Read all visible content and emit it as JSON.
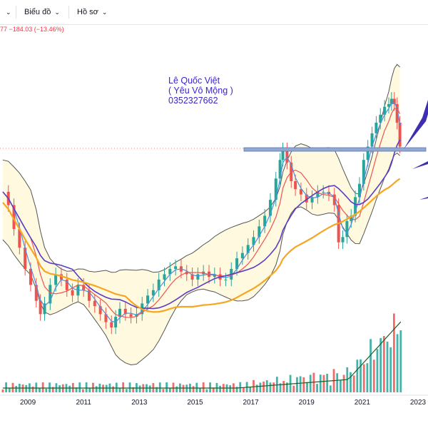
{
  "toolbar": {
    "chart_type_label": "Biểu đồ",
    "profile_label": "Hồ sơ"
  },
  "header": {
    "change_text": "77  −184.03 (−13.46%)"
  },
  "annotation": {
    "line1": "Lê Quốc Việt",
    "line2": "( Yêu Vô Mộng )",
    "line3": "0352327662"
  },
  "colors": {
    "up": "#26a69a",
    "down": "#ef5350",
    "ma_blue": "#4a90e2",
    "ma_red": "#ef5350",
    "ma_purple": "#5b3cc4",
    "ma_orange": "#f5a623",
    "bands": "#555555",
    "band_fill": "#fff9e0",
    "support_zone": "#8fa9d6",
    "arrow": "#3d2fb0"
  },
  "chart_data": {
    "type": "candlestick",
    "x_tick_labels": [
      "2009",
      "2011",
      "2013",
      "2015",
      "2017",
      "2019",
      "2021",
      "2023"
    ],
    "x_ticks": [
      2009,
      2011,
      2013,
      2015,
      2017,
      2019,
      2021,
      2023
    ],
    "xlim": [
      2008,
      2023
    ],
    "approx_close": [
      [
        2008.1,
        1070
      ],
      [
        2008.3,
        1020
      ],
      [
        2008.5,
        930
      ],
      [
        2008.7,
        860
      ],
      [
        2008.9,
        780
      ],
      [
        2009.1,
        720
      ],
      [
        2009.3,
        660
      ],
      [
        2009.45,
        610
      ],
      [
        2009.6,
        650
      ],
      [
        2009.8,
        720
      ],
      [
        2010.0,
        760
      ],
      [
        2010.2,
        740
      ],
      [
        2010.4,
        700
      ],
      [
        2010.6,
        680
      ],
      [
        2010.8,
        720
      ],
      [
        2011.0,
        700
      ],
      [
        2011.2,
        660
      ],
      [
        2011.4,
        640
      ],
      [
        2011.6,
        610
      ],
      [
        2011.8,
        580
      ],
      [
        2012.0,
        560
      ],
      [
        2012.15,
        600
      ],
      [
        2012.3,
        630
      ],
      [
        2012.5,
        610
      ],
      [
        2012.7,
        600
      ],
      [
        2012.9,
        610
      ],
      [
        2013.1,
        650
      ],
      [
        2013.3,
        680
      ],
      [
        2013.5,
        700
      ],
      [
        2013.7,
        740
      ],
      [
        2013.9,
        760
      ],
      [
        2014.1,
        780
      ],
      [
        2014.3,
        790
      ],
      [
        2014.5,
        770
      ],
      [
        2014.7,
        760
      ],
      [
        2014.9,
        740
      ],
      [
        2015.1,
        760
      ],
      [
        2015.3,
        770
      ],
      [
        2015.5,
        750
      ],
      [
        2015.7,
        760
      ],
      [
        2015.9,
        740
      ],
      [
        2016.1,
        740
      ],
      [
        2016.3,
        780
      ],
      [
        2016.5,
        820
      ],
      [
        2016.7,
        840
      ],
      [
        2016.9,
        870
      ],
      [
        2017.1,
        900
      ],
      [
        2017.3,
        940
      ],
      [
        2017.5,
        980
      ],
      [
        2017.7,
        1040
      ],
      [
        2017.9,
        1120
      ],
      [
        2018.05,
        1190
      ],
      [
        2018.15,
        1230
      ],
      [
        2018.3,
        1180
      ],
      [
        2018.45,
        1110
      ],
      [
        2018.6,
        1080
      ],
      [
        2018.8,
        1060
      ],
      [
        2019.0,
        1030
      ],
      [
        2019.2,
        1050
      ],
      [
        2019.4,
        1070
      ],
      [
        2019.6,
        1070
      ],
      [
        2019.8,
        1060
      ],
      [
        2020.0,
        1020
      ],
      [
        2020.15,
        880
      ],
      [
        2020.3,
        900
      ],
      [
        2020.45,
        960
      ],
      [
        2020.6,
        980
      ],
      [
        2020.75,
        1050
      ],
      [
        2020.9,
        1100
      ],
      [
        2021.05,
        1190
      ],
      [
        2021.2,
        1240
      ],
      [
        2021.35,
        1290
      ],
      [
        2021.5,
        1330
      ],
      [
        2021.65,
        1360
      ],
      [
        2021.8,
        1390
      ],
      [
        2021.95,
        1400
      ],
      [
        2022.05,
        1420
      ],
      [
        2022.15,
        1400
      ],
      [
        2022.25,
        1330
      ],
      [
        2022.35,
        1240
      ]
    ],
    "series": [
      {
        "name": "",
        "type": "line",
        "data": []
      }
    ],
    "support_level_note": "",
    "legend": "none"
  }
}
